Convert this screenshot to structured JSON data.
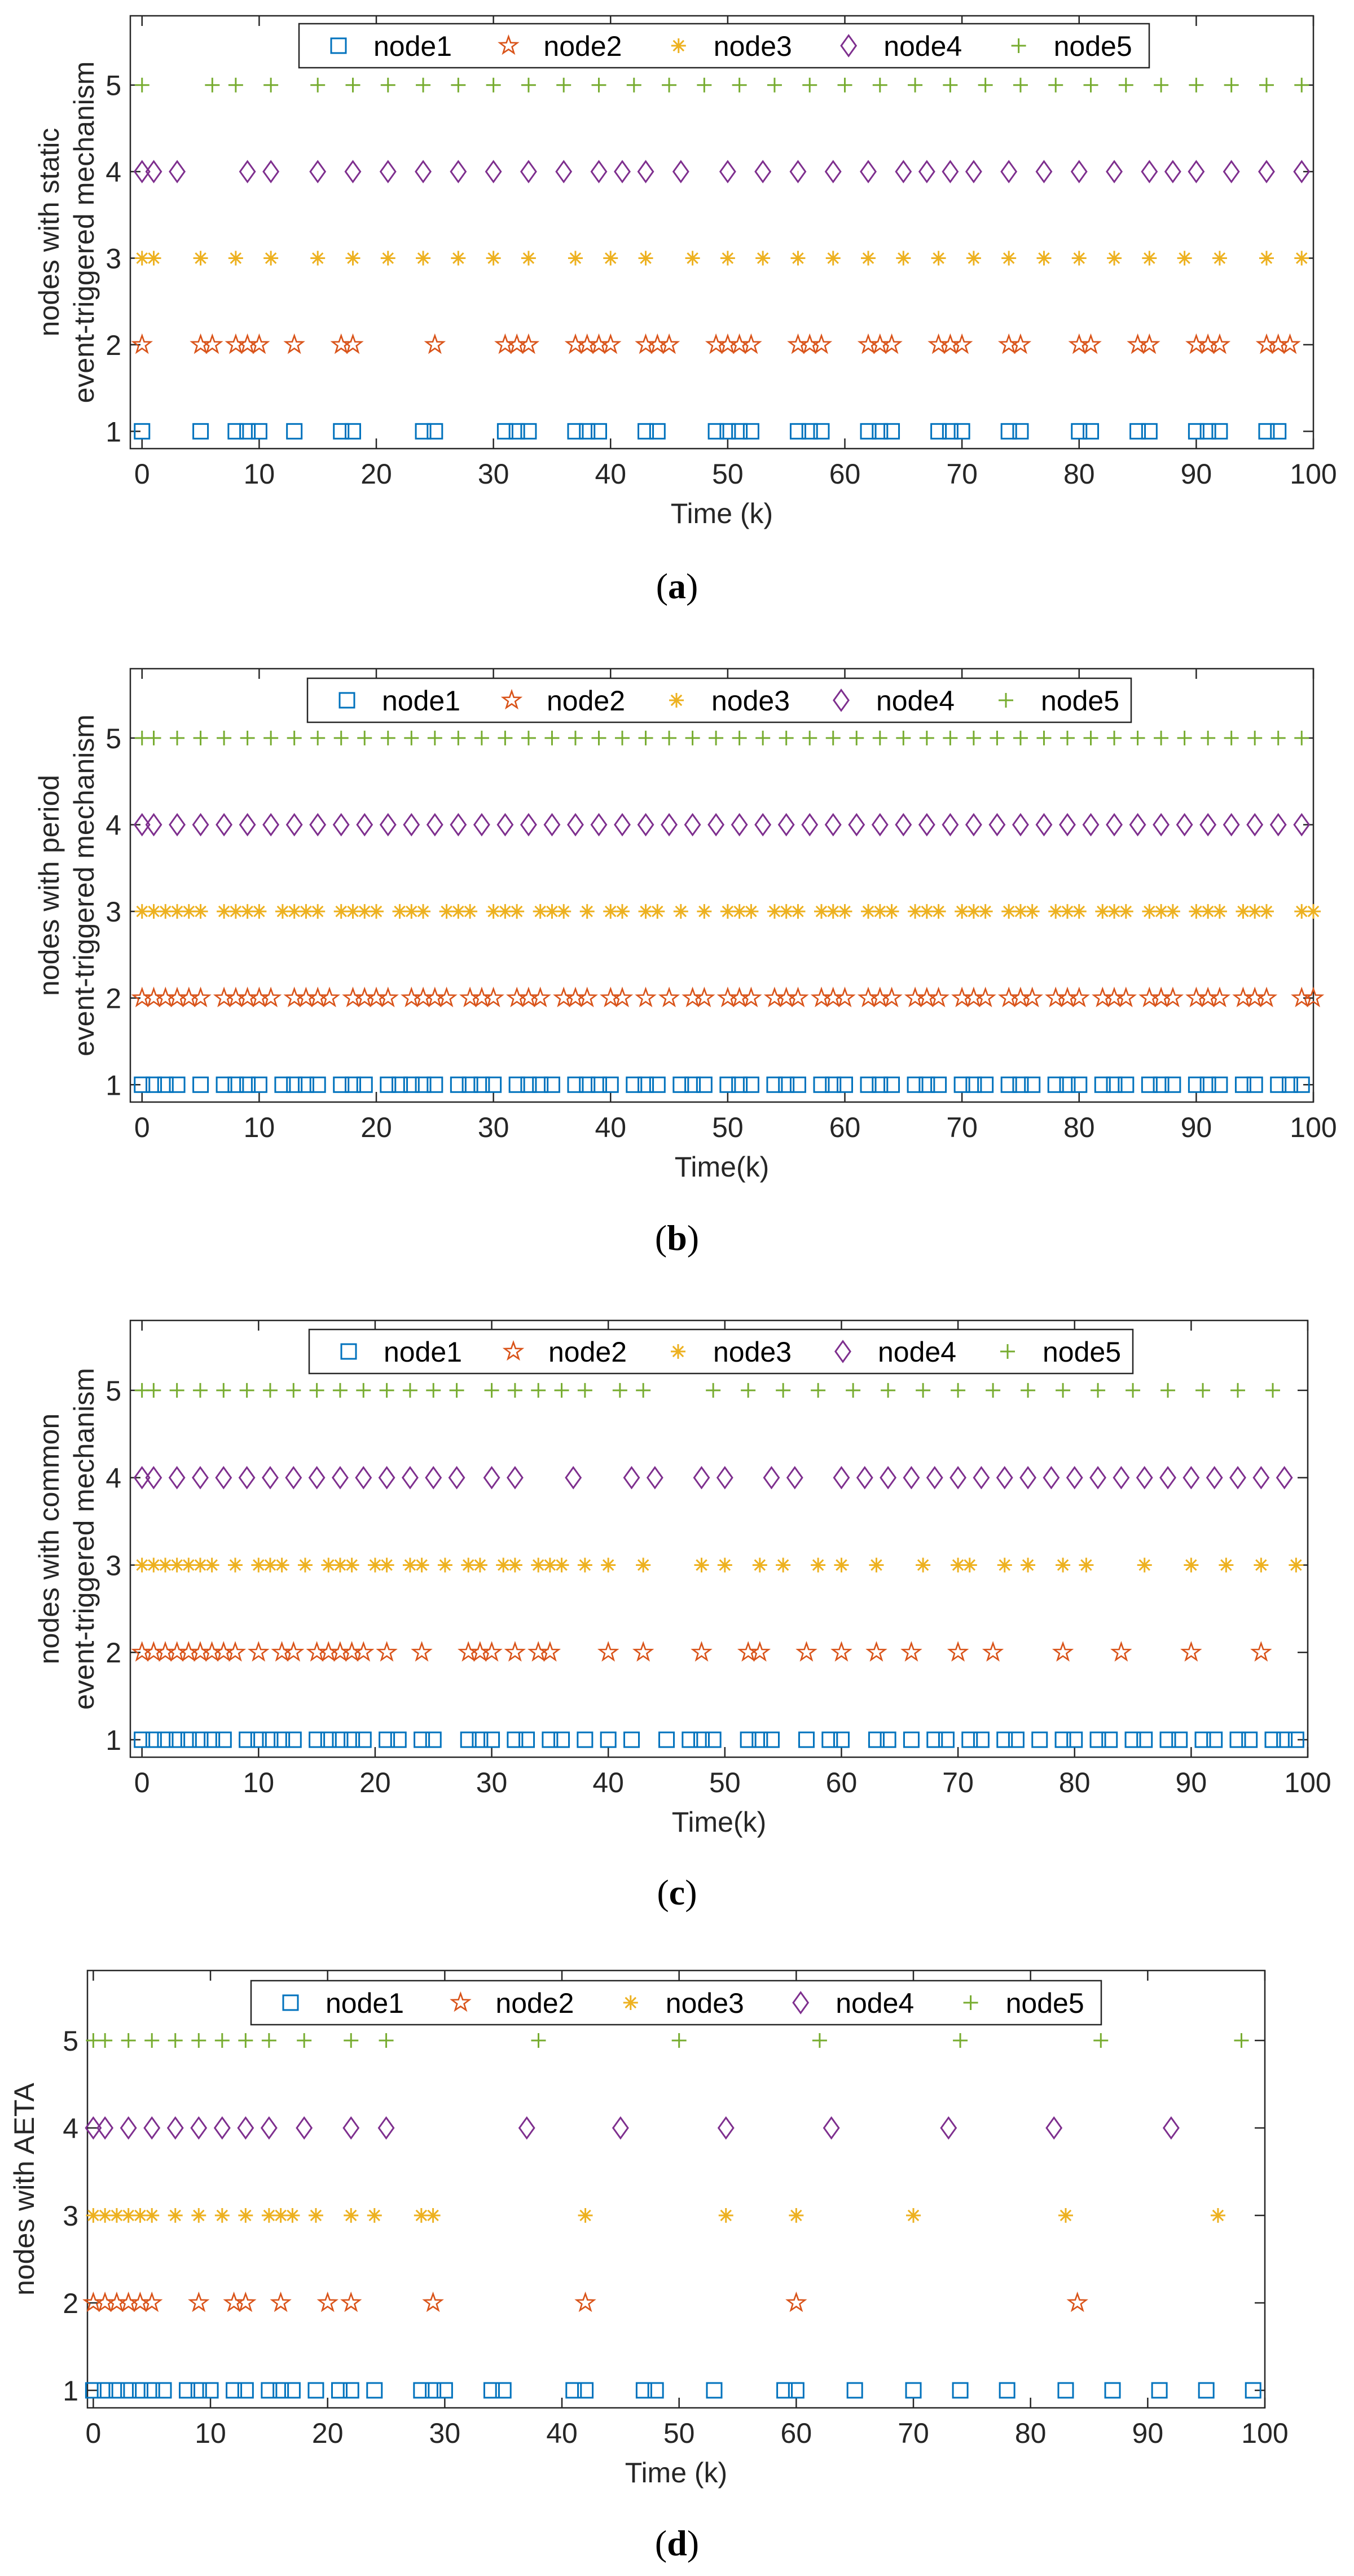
{
  "colors": {
    "node1": "#0072BD",
    "node2": "#D95319",
    "node3": "#EDB120",
    "node4": "#7E2F8E",
    "node5": "#77AC30",
    "axis": "#262626"
  },
  "legend": [
    {
      "name": "node1",
      "marker": "square"
    },
    {
      "name": "node2",
      "marker": "pentagram"
    },
    {
      "name": "node3",
      "marker": "asterisk"
    },
    {
      "name": "node4",
      "marker": "diamond"
    },
    {
      "name": "node5",
      "marker": "plus"
    }
  ],
  "chart_data": [
    {
      "type": "scatter",
      "caption": {
        "open": "(",
        "letter": "a",
        "close": ")"
      },
      "xlabel": "Time (k)",
      "ylabel_lines": [
        "nodes with static",
        "event-triggered mechanism"
      ],
      "xlim": [
        -1,
        100
      ],
      "ylim": [
        0.8,
        5.8
      ],
      "xticks": [
        "0",
        "10",
        "20",
        "30",
        "40",
        "50",
        "60",
        "70",
        "80",
        "90",
        "100"
      ],
      "yticks": [
        "1",
        "2",
        "3",
        "4",
        "5"
      ],
      "series": [
        {
          "name": "node1",
          "y": 1,
          "x": [
            0,
            5,
            8,
            9,
            10,
            13,
            17,
            18,
            24,
            25,
            31,
            32,
            33,
            37,
            38,
            39,
            43,
            44,
            49,
            50,
            51,
            52,
            56,
            57,
            58,
            62,
            63,
            64,
            68,
            69,
            70,
            74,
            75,
            80,
            81,
            85,
            86,
            90,
            91,
            92,
            96,
            97
          ]
        },
        {
          "name": "node2",
          "y": 2,
          "x": [
            0,
            5,
            6,
            8,
            9,
            10,
            13,
            17,
            18,
            25,
            31,
            32,
            33,
            37,
            38,
            39,
            40,
            43,
            44,
            45,
            49,
            50,
            51,
            52,
            56,
            57,
            58,
            62,
            63,
            64,
            68,
            69,
            70,
            74,
            75,
            80,
            81,
            85,
            86,
            90,
            91,
            92,
            96,
            97,
            98
          ]
        },
        {
          "name": "node3",
          "y": 3,
          "x": [
            0,
            1,
            5,
            8,
            11,
            15,
            18,
            21,
            24,
            27,
            30,
            33,
            37,
            40,
            43,
            47,
            50,
            53,
            56,
            59,
            62,
            65,
            68,
            71,
            74,
            77,
            80,
            83,
            86,
            89,
            92,
            96,
            99
          ]
        },
        {
          "name": "node4",
          "y": 4,
          "x": [
            0,
            1,
            3,
            9,
            11,
            15,
            18,
            21,
            24,
            27,
            30,
            33,
            36,
            39,
            41,
            43,
            46,
            50,
            53,
            56,
            59,
            62,
            65,
            67,
            69,
            71,
            74,
            77,
            80,
            83,
            86,
            88,
            90,
            93,
            96,
            99
          ]
        },
        {
          "name": "node5",
          "y": 5,
          "x": [
            0,
            6,
            8,
            11,
            15,
            18,
            21,
            24,
            27,
            30,
            33,
            36,
            39,
            42,
            45,
            48,
            51,
            54,
            57,
            60,
            63,
            66,
            69,
            72,
            75,
            78,
            81,
            84,
            87,
            90,
            93,
            96,
            99
          ]
        }
      ]
    },
    {
      "type": "scatter",
      "caption": {
        "open": "(",
        "letter": "b",
        "close": ")"
      },
      "xlabel": "Time(k)",
      "ylabel_lines": [
        "nodes with period",
        "event-triggered mechanism"
      ],
      "xlim": [
        -1,
        100
      ],
      "ylim": [
        0.8,
        5.8
      ],
      "xticks": [
        "0",
        "10",
        "20",
        "30",
        "40",
        "50",
        "60",
        "70",
        "80",
        "90",
        "100"
      ],
      "yticks": [
        "1",
        "2",
        "3",
        "4",
        "5"
      ],
      "series": [
        {
          "name": "node1",
          "y": 1,
          "x": [
            0,
            1,
            2,
            3,
            5,
            7,
            8,
            9,
            10,
            12,
            13,
            14,
            15,
            17,
            18,
            19,
            21,
            22,
            23,
            24,
            25,
            27,
            28,
            29,
            30,
            32,
            33,
            34,
            35,
            37,
            38,
            39,
            40,
            42,
            43,
            44,
            46,
            47,
            48,
            50,
            51,
            52,
            54,
            55,
            56,
            58,
            59,
            60,
            62,
            63,
            64,
            66,
            67,
            68,
            70,
            71,
            72,
            74,
            75,
            76,
            78,
            79,
            80,
            82,
            83,
            84,
            86,
            87,
            88,
            90,
            91,
            92,
            94,
            95,
            97,
            98,
            99
          ]
        },
        {
          "name": "node2",
          "y": 2,
          "x": [
            0,
            1,
            2,
            3,
            4,
            5,
            7,
            8,
            9,
            10,
            11,
            13,
            14,
            15,
            16,
            18,
            19,
            20,
            21,
            23,
            24,
            25,
            26,
            28,
            29,
            30,
            32,
            33,
            34,
            36,
            37,
            38,
            40,
            41,
            43,
            45,
            47,
            48,
            50,
            51,
            52,
            54,
            55,
            56,
            58,
            59,
            60,
            62,
            63,
            64,
            66,
            67,
            68,
            70,
            71,
            72,
            74,
            75,
            76,
            78,
            79,
            80,
            82,
            83,
            84,
            86,
            87,
            88,
            90,
            91,
            92,
            94,
            95,
            96,
            99,
            100
          ]
        },
        {
          "name": "node3",
          "y": 3,
          "x": [
            0,
            1,
            2,
            3,
            4,
            5,
            7,
            8,
            9,
            10,
            12,
            13,
            14,
            15,
            17,
            18,
            19,
            20,
            22,
            23,
            24,
            26,
            27,
            28,
            30,
            31,
            32,
            34,
            35,
            36,
            38,
            40,
            41,
            43,
            44,
            46,
            48,
            50,
            51,
            52,
            54,
            55,
            56,
            58,
            59,
            60,
            62,
            63,
            64,
            66,
            67,
            68,
            70,
            71,
            72,
            74,
            75,
            76,
            78,
            79,
            80,
            82,
            83,
            84,
            86,
            87,
            88,
            90,
            91,
            92,
            94,
            95,
            96,
            99,
            100
          ]
        },
        {
          "name": "node4",
          "y": 4,
          "x": [
            0,
            1,
            3,
            5,
            7,
            9,
            11,
            13,
            15,
            17,
            19,
            21,
            23,
            25,
            27,
            29,
            31,
            33,
            35,
            37,
            39,
            41,
            43,
            45,
            47,
            49,
            51,
            53,
            55,
            57,
            59,
            61,
            63,
            65,
            67,
            69,
            71,
            73,
            75,
            77,
            79,
            81,
            83,
            85,
            87,
            89,
            91,
            93,
            95,
            97,
            99
          ]
        },
        {
          "name": "node5",
          "y": 5,
          "x": [
            0,
            1,
            3,
            5,
            7,
            9,
            11,
            13,
            15,
            17,
            19,
            21,
            23,
            25,
            27,
            29,
            31,
            33,
            35,
            37,
            39,
            41,
            43,
            45,
            47,
            49,
            51,
            53,
            55,
            57,
            59,
            61,
            63,
            65,
            67,
            69,
            71,
            73,
            75,
            77,
            79,
            81,
            83,
            85,
            87,
            89,
            91,
            93,
            95,
            97,
            99
          ]
        }
      ]
    },
    {
      "type": "scatter",
      "caption": {
        "open": "(",
        "letter": "c",
        "close": ")"
      },
      "xlabel": "Time(k)",
      "ylabel_lines": [
        "nodes with common",
        "event-triggered mechanism"
      ],
      "xlim": [
        -1,
        100
      ],
      "ylim": [
        0.8,
        5.8
      ],
      "xticks": [
        "0",
        "10",
        "20",
        "30",
        "40",
        "50",
        "60",
        "70",
        "80",
        "90",
        "100"
      ],
      "yticks": [
        "1",
        "2",
        "3",
        "4",
        "5"
      ],
      "series": [
        {
          "name": "node1",
          "y": 1,
          "x": [
            0,
            1,
            2,
            3,
            4,
            5,
            6,
            7,
            9,
            10,
            11,
            12,
            13,
            15,
            16,
            17,
            18,
            19,
            21,
            22,
            24,
            25,
            28,
            29,
            30,
            32,
            33,
            35,
            36,
            38,
            40,
            42,
            45,
            47,
            48,
            49,
            52,
            53,
            54,
            57,
            59,
            60,
            63,
            64,
            66,
            68,
            69,
            71,
            72,
            74,
            75,
            77,
            79,
            80,
            82,
            83,
            85,
            86,
            88,
            89,
            91,
            92,
            94,
            95,
            97,
            98,
            99
          ]
        },
        {
          "name": "node2",
          "y": 2,
          "x": [
            0,
            1,
            2,
            3,
            4,
            5,
            6,
            7,
            8,
            10,
            12,
            13,
            15,
            16,
            17,
            18,
            19,
            21,
            24,
            28,
            29,
            30,
            32,
            34,
            35,
            40,
            43,
            48,
            52,
            53,
            57,
            60,
            63,
            66,
            70,
            73,
            79,
            84,
            90,
            96
          ]
        },
        {
          "name": "node3",
          "y": 3,
          "x": [
            0,
            1,
            2,
            3,
            4,
            5,
            6,
            8,
            10,
            11,
            12,
            14,
            16,
            17,
            18,
            20,
            21,
            23,
            24,
            26,
            28,
            29,
            31,
            32,
            34,
            35,
            36,
            38,
            40,
            43,
            48,
            50,
            53,
            55,
            58,
            60,
            63,
            67,
            70,
            71,
            74,
            76,
            79,
            81,
            86,
            90,
            93,
            96,
            99
          ]
        },
        {
          "name": "node4",
          "y": 4,
          "x": [
            0,
            1,
            3,
            5,
            7,
            9,
            11,
            13,
            15,
            17,
            19,
            21,
            23,
            25,
            27,
            30,
            32,
            37,
            42,
            44,
            48,
            50,
            54,
            56,
            60,
            62,
            64,
            66,
            68,
            70,
            72,
            74,
            76,
            78,
            80,
            82,
            84,
            86,
            88,
            90,
            92,
            94,
            96,
            98
          ]
        },
        {
          "name": "node5",
          "y": 5,
          "x": [
            0,
            1,
            3,
            5,
            7,
            9,
            11,
            13,
            15,
            17,
            19,
            21,
            23,
            25,
            27,
            30,
            32,
            34,
            36,
            38,
            41,
            43,
            49,
            52,
            55,
            58,
            61,
            64,
            67,
            70,
            73,
            76,
            79,
            82,
            85,
            88,
            91,
            94,
            97
          ]
        }
      ]
    },
    {
      "type": "scatter",
      "caption": {
        "open": "(",
        "letter": "d",
        "close": ")"
      },
      "xlabel": "Time (k)",
      "ylabel_lines": [
        "nodes with AETA"
      ],
      "xlim": [
        -0.5,
        100
      ],
      "ylim": [
        0.8,
        5.8
      ],
      "xticks": [
        "0",
        "10",
        "20",
        "30",
        "40",
        "50",
        "60",
        "70",
        "80",
        "90",
        "100"
      ],
      "yticks": [
        "1",
        "2",
        "3",
        "4",
        "5"
      ],
      "series": [
        {
          "name": "node1",
          "y": 1,
          "x": [
            0,
            1,
            2,
            3,
            4,
            5,
            6,
            8,
            9,
            10,
            12,
            13,
            15,
            16,
            17,
            19,
            21,
            22,
            24,
            28,
            29,
            30,
            34,
            35,
            41,
            42,
            47,
            48,
            53,
            59,
            60,
            65,
            70,
            74,
            78,
            83,
            87,
            91,
            95,
            99
          ]
        },
        {
          "name": "node2",
          "y": 2,
          "x": [
            0,
            1,
            2,
            3,
            4,
            5,
            9,
            12,
            13,
            16,
            20,
            22,
            29,
            42,
            60,
            84
          ]
        },
        {
          "name": "node3",
          "y": 3,
          "x": [
            0,
            1,
            2,
            3,
            4,
            5,
            7,
            9,
            11,
            13,
            15,
            16,
            17,
            19,
            22,
            24,
            28,
            29,
            42,
            54,
            60,
            70,
            83,
            96
          ]
        },
        {
          "name": "node4",
          "y": 4,
          "x": [
            0,
            1,
            3,
            5,
            7,
            9,
            11,
            13,
            15,
            18,
            22,
            25,
            37,
            45,
            54,
            63,
            73,
            82,
            92
          ]
        },
        {
          "name": "node5",
          "y": 5,
          "x": [
            0,
            1,
            3,
            5,
            7,
            9,
            11,
            13,
            15,
            18,
            22,
            25,
            38,
            50,
            62,
            74,
            86,
            98
          ]
        }
      ]
    }
  ]
}
